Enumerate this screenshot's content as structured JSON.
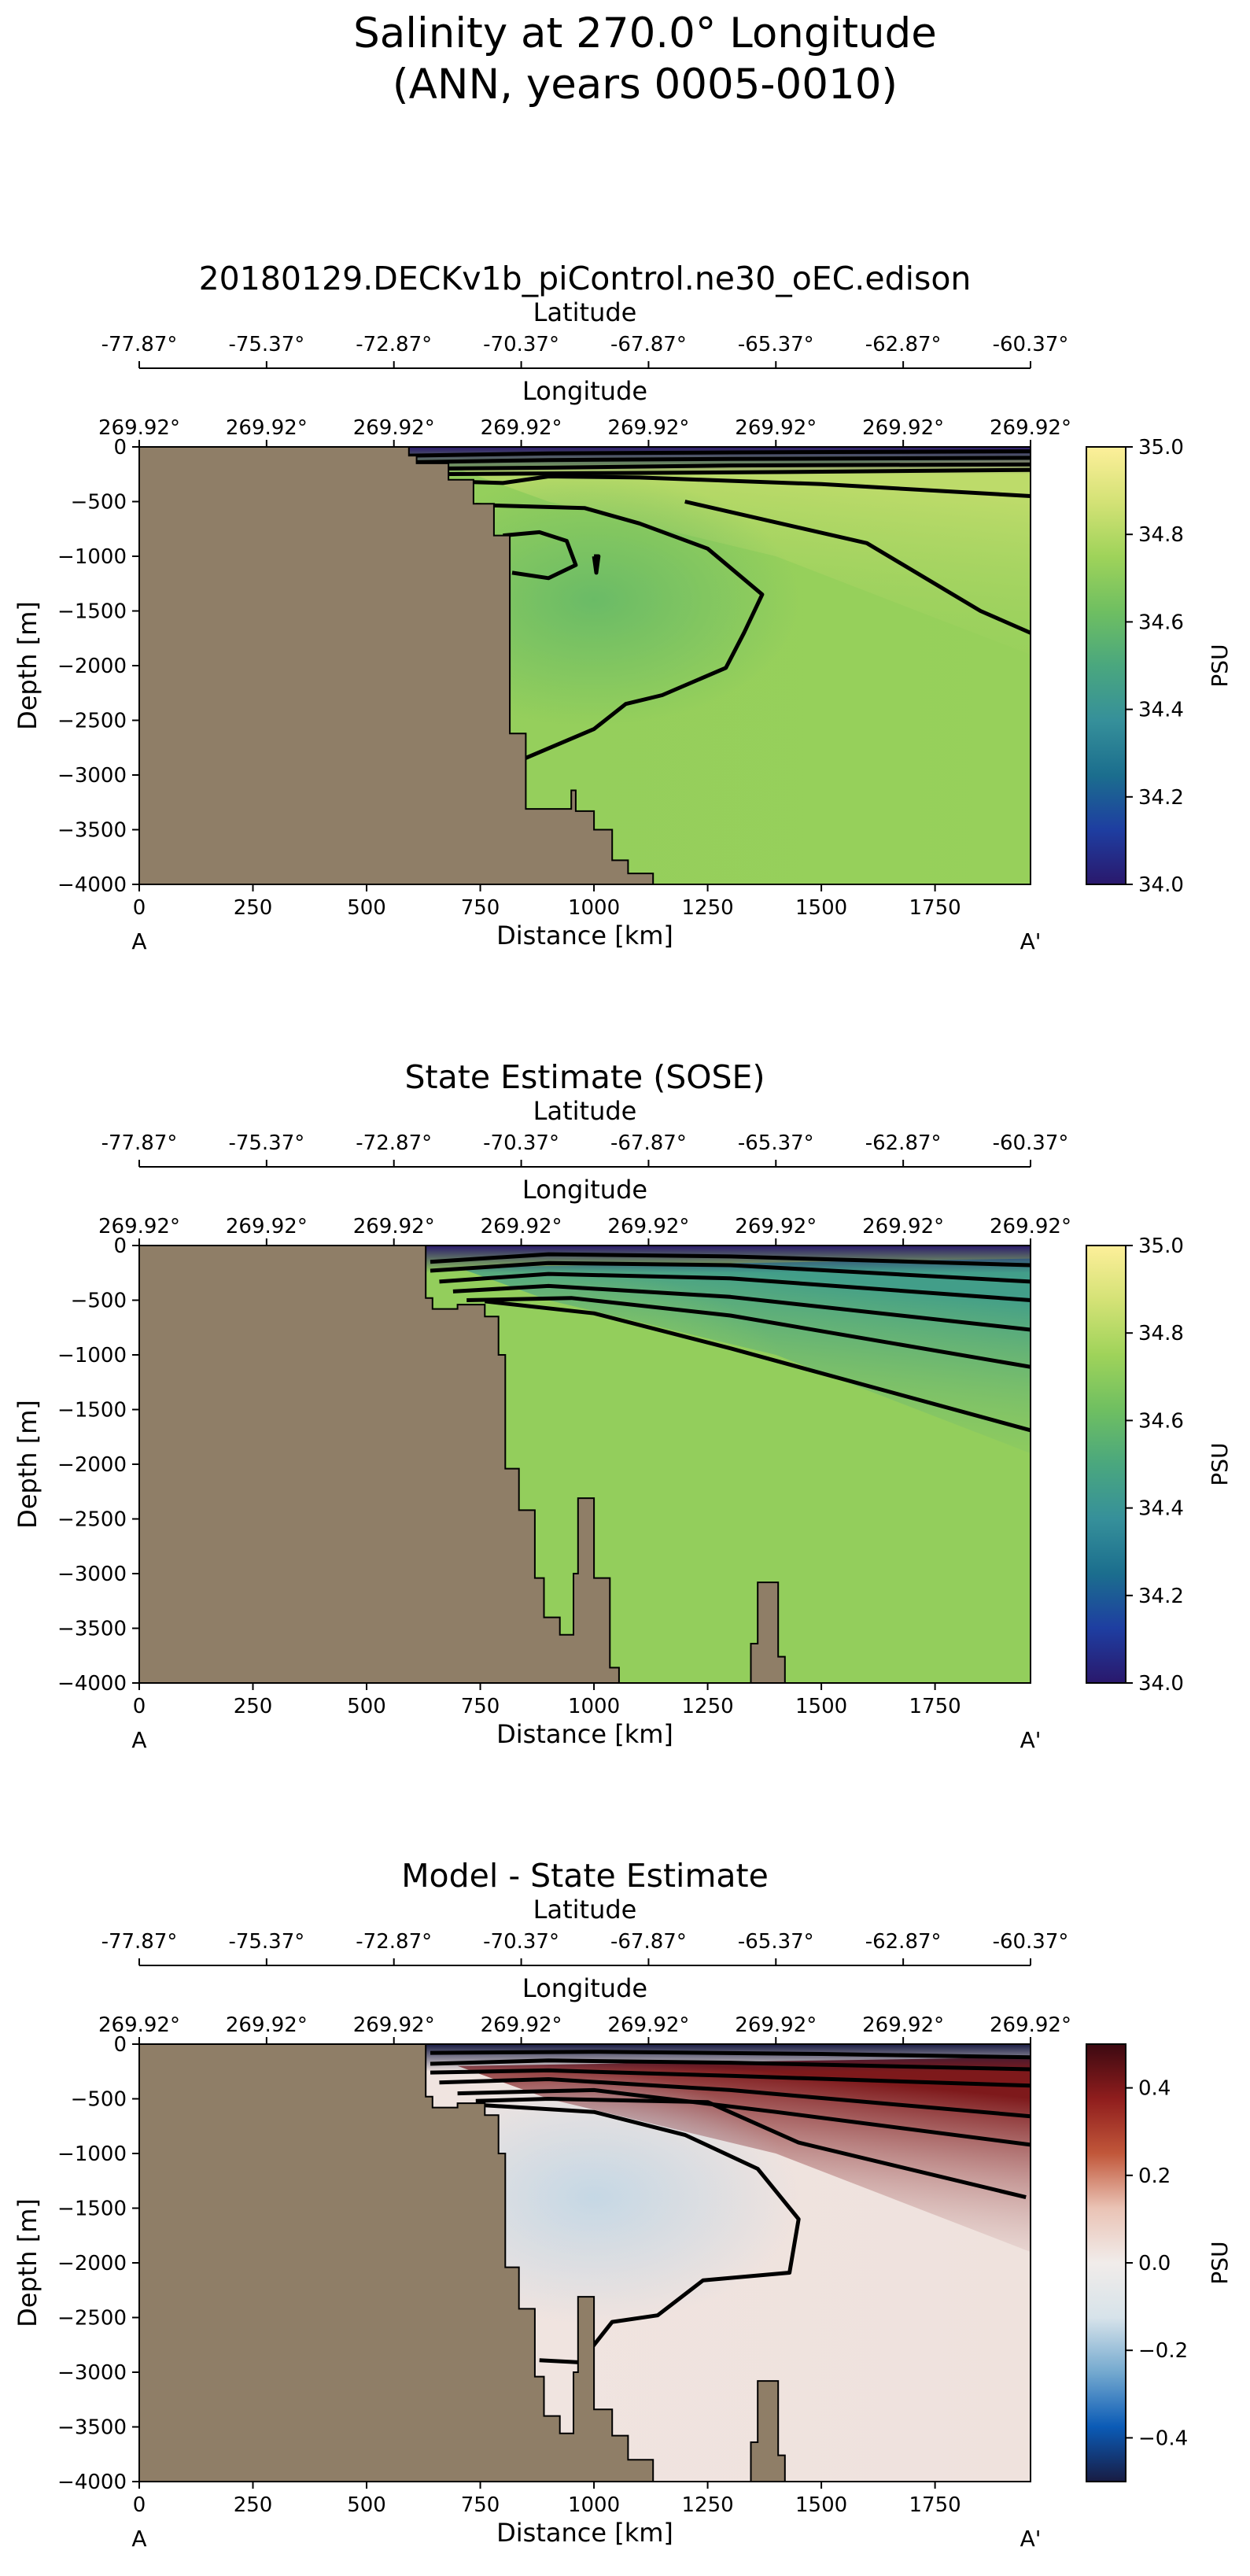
{
  "figure": {
    "title_line1": "Salinity at 270.0° Longitude",
    "title_line2": "(ANN, years 0005-0010)"
  },
  "colors": {
    "land": "#8f7e67",
    "contour": "#000000",
    "haline": [
      "#2a186c",
      "#1e3ea1",
      "#1b6e8e",
      "#36909a",
      "#4aa77e",
      "#6fbf61",
      "#9fd35a",
      "#d4e276",
      "#fdef9a"
    ],
    "balance": [
      "#181c43",
      "#0b5bb6",
      "#74a9cf",
      "#d7e3ea",
      "#f1ecea",
      "#eac3b5",
      "#c1573a",
      "#8f1d1d",
      "#3c0911"
    ]
  },
  "chart_data": [
    {
      "type": "heatmap",
      "panel_title": "20180129.DECKv1b_piControl.ne30_oEC.edison",
      "xlabel": "Distance [km]",
      "ylabel": "Depth [m]",
      "xlim": [
        0,
        1960
      ],
      "ylim": [
        -4000,
        0
      ],
      "x_ticks": [
        0,
        250,
        500,
        750,
        1000,
        1250,
        1500,
        1750
      ],
      "y_ticks": [
        0,
        -500,
        -1000,
        -1500,
        -2000,
        -2500,
        -3000,
        -3500,
        -4000
      ],
      "latitude_label": "Latitude",
      "latitude_ticks": [
        "-77.87°",
        "-75.37°",
        "-72.87°",
        "-70.37°",
        "-67.87°",
        "-65.37°",
        "-62.87°",
        "-60.37°"
      ],
      "longitude_label": "Longitude",
      "longitude_ticks": [
        "269.92°",
        "269.92°",
        "269.92°",
        "269.92°",
        "269.92°",
        "269.92°",
        "269.92°",
        "269.92°"
      ],
      "start_label": "A",
      "end_label": "A'",
      "colorbar": {
        "cmap": "haline",
        "label": "PSU",
        "min": 34.0,
        "max": 35.0,
        "ticks": [
          34.0,
          34.2,
          34.4,
          34.6,
          34.8,
          35.0
        ],
        "tick_labels": [
          "34.0",
          "34.2",
          "34.4",
          "34.6",
          "34.8",
          "35.0"
        ]
      },
      "field_values": {
        "background": 34.72,
        "deep_right": 34.73,
        "core_min": 34.6,
        "upper_right": 34.82,
        "surface": 34.0
      },
      "land_profile": [
        [
          0,
          0
        ],
        [
          593,
          0
        ],
        [
          593,
          -80
        ],
        [
          610,
          -80
        ],
        [
          610,
          -150
        ],
        [
          680,
          -150
        ],
        [
          680,
          -300
        ],
        [
          735,
          -300
        ],
        [
          735,
          -520
        ],
        [
          780,
          -520
        ],
        [
          780,
          -810
        ],
        [
          815,
          -810
        ],
        [
          815,
          -2620
        ],
        [
          850,
          -2620
        ],
        [
          850,
          -3310
        ],
        [
          950,
          -3310
        ],
        [
          950,
          -3140
        ],
        [
          960,
          -3140
        ],
        [
          960,
          -3330
        ],
        [
          1000,
          -3330
        ],
        [
          1000,
          -3500
        ],
        [
          1040,
          -3500
        ],
        [
          1040,
          -3780
        ],
        [
          1075,
          -3780
        ],
        [
          1075,
          -3900
        ],
        [
          1130,
          -3900
        ],
        [
          1130,
          -4000
        ],
        [
          0,
          -4000
        ]
      ],
      "contours": [
        [
          [
            593,
            -80
          ],
          [
            900,
            -60
          ],
          [
            1300,
            -50
          ],
          [
            1960,
            -40
          ]
        ],
        [
          [
            593,
            -140
          ],
          [
            900,
            -120
          ],
          [
            1300,
            -110
          ],
          [
            1960,
            -100
          ]
        ],
        [
          [
            600,
            -200
          ],
          [
            900,
            -190
          ],
          [
            1300,
            -170
          ],
          [
            1960,
            -160
          ]
        ],
        [
          [
            620,
            -250
          ],
          [
            1000,
            -240
          ],
          [
            1400,
            -230
          ],
          [
            1960,
            -210
          ]
        ],
        [
          [
            640,
            -310
          ],
          [
            800,
            -330
          ],
          [
            900,
            -270
          ],
          [
            1100,
            -280
          ],
          [
            1500,
            -340
          ],
          [
            1960,
            -450
          ]
        ],
        [
          [
            740,
            -530
          ],
          [
            980,
            -560
          ],
          [
            1100,
            -700
          ],
          [
            1250,
            -930
          ],
          [
            1370,
            -1350
          ],
          [
            1330,
            -1700
          ],
          [
            1290,
            -2020
          ],
          [
            1150,
            -2270
          ],
          [
            1070,
            -2350
          ],
          [
            1000,
            -2580
          ],
          [
            830,
            -2880
          ],
          [
            815,
            -2880
          ]
        ],
        [
          [
            1000,
            -1000
          ],
          [
            1005,
            -1150
          ],
          [
            1010,
            -1000
          ],
          [
            1000,
            -1000
          ]
        ],
        [
          [
            800,
            -810
          ],
          [
            880,
            -780
          ],
          [
            940,
            -860
          ],
          [
            960,
            -1080
          ],
          [
            900,
            -1200
          ],
          [
            820,
            -1150
          ]
        ],
        [
          [
            1200,
            -500
          ],
          [
            1600,
            -880
          ],
          [
            1850,
            -1500
          ],
          [
            1960,
            -1700
          ]
        ]
      ]
    },
    {
      "type": "heatmap",
      "panel_title": "State Estimate (SOSE)",
      "xlabel": "Distance [km]",
      "ylabel": "Depth [m]",
      "xlim": [
        0,
        1960
      ],
      "ylim": [
        -4000,
        0
      ],
      "x_ticks": [
        0,
        250,
        500,
        750,
        1000,
        1250,
        1500,
        1750
      ],
      "y_ticks": [
        0,
        -500,
        -1000,
        -1500,
        -2000,
        -2500,
        -3000,
        -3500,
        -4000
      ],
      "latitude_label": "Latitude",
      "latitude_ticks": [
        "-77.87°",
        "-75.37°",
        "-72.87°",
        "-70.37°",
        "-67.87°",
        "-65.37°",
        "-62.87°",
        "-60.37°"
      ],
      "longitude_label": "Longitude",
      "longitude_ticks": [
        "269.92°",
        "269.92°",
        "269.92°",
        "269.92°",
        "269.92°",
        "269.92°",
        "269.92°",
        "269.92°"
      ],
      "start_label": "A",
      "end_label": "A'",
      "colorbar": {
        "cmap": "haline",
        "label": "PSU",
        "min": 34.0,
        "max": 35.0,
        "ticks": [
          34.0,
          34.2,
          34.4,
          34.6,
          34.8,
          35.0
        ],
        "tick_labels": [
          "34.0",
          "34.2",
          "34.4",
          "34.6",
          "34.8",
          "35.0"
        ]
      },
      "field_values": {
        "background": 34.72,
        "deep_right": 34.72,
        "core_min": 34.72,
        "upper_right": 34.45,
        "surface": 34.0
      },
      "land_profile": [
        [
          0,
          0
        ],
        [
          630,
          0
        ],
        [
          630,
          -480
        ],
        [
          645,
          -480
        ],
        [
          645,
          -580
        ],
        [
          700,
          -580
        ],
        [
          700,
          -540
        ],
        [
          760,
          -540
        ],
        [
          760,
          -650
        ],
        [
          790,
          -650
        ],
        [
          790,
          -1000
        ],
        [
          805,
          -1000
        ],
        [
          805,
          -2040
        ],
        [
          835,
          -2040
        ],
        [
          835,
          -2420
        ],
        [
          870,
          -2420
        ],
        [
          870,
          -3040
        ],
        [
          890,
          -3040
        ],
        [
          890,
          -3400
        ],
        [
          925,
          -3400
        ],
        [
          925,
          -3560
        ],
        [
          955,
          -3560
        ],
        [
          955,
          -3000
        ],
        [
          965,
          -3000
        ],
        [
          965,
          -2310
        ],
        [
          1000,
          -2310
        ],
        [
          1000,
          -3040
        ],
        [
          1035,
          -3040
        ],
        [
          1035,
          -3860
        ],
        [
          1055,
          -3860
        ],
        [
          1055,
          -4000
        ],
        [
          0,
          -4000
        ]
      ],
      "sea_mount": [
        [
          1345,
          -4000
        ],
        [
          1345,
          -3640
        ],
        [
          1360,
          -3640
        ],
        [
          1360,
          -3080
        ],
        [
          1405,
          -3080
        ],
        [
          1405,
          -3760
        ],
        [
          1420,
          -3760
        ],
        [
          1420,
          -4000
        ]
      ],
      "contours": [
        [
          [
            640,
            -150
          ],
          [
            900,
            -80
          ],
          [
            1300,
            -100
          ],
          [
            1960,
            -180
          ]
        ],
        [
          [
            640,
            -230
          ],
          [
            900,
            -160
          ],
          [
            1300,
            -180
          ],
          [
            1960,
            -330
          ]
        ],
        [
          [
            660,
            -330
          ],
          [
            900,
            -260
          ],
          [
            1300,
            -300
          ],
          [
            1960,
            -500
          ]
        ],
        [
          [
            690,
            -420
          ],
          [
            900,
            -370
          ],
          [
            1300,
            -470
          ],
          [
            1960,
            -770
          ]
        ],
        [
          [
            720,
            -500
          ],
          [
            950,
            -480
          ],
          [
            1300,
            -640
          ],
          [
            1960,
            -1110
          ]
        ],
        [
          [
            760,
            -510
          ],
          [
            1000,
            -620
          ],
          [
            1300,
            -940
          ],
          [
            1960,
            -1690
          ]
        ]
      ]
    },
    {
      "type": "heatmap",
      "panel_title": "Model - State Estimate",
      "xlabel": "Distance [km]",
      "ylabel": "Depth [m]",
      "xlim": [
        0,
        1960
      ],
      "ylim": [
        -4000,
        0
      ],
      "x_ticks": [
        0,
        250,
        500,
        750,
        1000,
        1250,
        1500,
        1750
      ],
      "y_ticks": [
        0,
        -500,
        -1000,
        -1500,
        -2000,
        -2500,
        -3000,
        -3500,
        -4000
      ],
      "latitude_label": "Latitude",
      "latitude_ticks": [
        "-77.87°",
        "-75.37°",
        "-72.87°",
        "-70.37°",
        "-67.87°",
        "-65.37°",
        "-62.87°",
        "-60.37°"
      ],
      "longitude_label": "Longitude",
      "longitude_ticks": [
        "269.92°",
        "269.92°",
        "269.92°",
        "269.92°",
        "269.92°",
        "269.92°",
        "269.92°",
        "269.92°"
      ],
      "start_label": "A",
      "end_label": "A'",
      "colorbar": {
        "cmap": "balance",
        "label": "PSU",
        "min": -0.5,
        "max": 0.5,
        "ticks": [
          -0.4,
          -0.2,
          0.0,
          0.2,
          0.4
        ],
        "tick_labels": [
          "−0.4",
          "−0.2",
          "0.0",
          "0.2",
          "0.4"
        ]
      },
      "field_values": {
        "background": 0.02,
        "deep_right": 0.03,
        "core_min": -0.15,
        "upper_right": 0.4,
        "surface": -0.5
      },
      "land_profile": [
        [
          0,
          0
        ],
        [
          630,
          0
        ],
        [
          630,
          -480
        ],
        [
          645,
          -480
        ],
        [
          645,
          -580
        ],
        [
          700,
          -580
        ],
        [
          700,
          -540
        ],
        [
          760,
          -540
        ],
        [
          760,
          -650
        ],
        [
          790,
          -650
        ],
        [
          790,
          -1000
        ],
        [
          805,
          -1000
        ],
        [
          805,
          -2040
        ],
        [
          835,
          -2040
        ],
        [
          835,
          -2420
        ],
        [
          870,
          -2420
        ],
        [
          870,
          -3040
        ],
        [
          890,
          -3040
        ],
        [
          890,
          -3400
        ],
        [
          925,
          -3400
        ],
        [
          925,
          -3560
        ],
        [
          955,
          -3560
        ],
        [
          955,
          -3000
        ],
        [
          965,
          -3000
        ],
        [
          965,
          -2310
        ],
        [
          1000,
          -2310
        ],
        [
          1000,
          -3340
        ],
        [
          1040,
          -3340
        ],
        [
          1040,
          -3580
        ],
        [
          1075,
          -3580
        ],
        [
          1075,
          -3800
        ],
        [
          1130,
          -3800
        ],
        [
          1130,
          -4000
        ],
        [
          0,
          -4000
        ]
      ],
      "sea_mount": [
        [
          1345,
          -4000
        ],
        [
          1345,
          -3640
        ],
        [
          1360,
          -3640
        ],
        [
          1360,
          -3080
        ],
        [
          1405,
          -3080
        ],
        [
          1405,
          -3760
        ],
        [
          1420,
          -3760
        ],
        [
          1420,
          -4000
        ]
      ],
      "contours": [
        [
          [
            640,
            -80
          ],
          [
            1000,
            -70
          ],
          [
            1500,
            -90
          ],
          [
            1960,
            -120
          ]
        ],
        [
          [
            640,
            -180
          ],
          [
            900,
            -150
          ],
          [
            1300,
            -170
          ],
          [
            1960,
            -230
          ]
        ],
        [
          [
            640,
            -260
          ],
          [
            900,
            -240
          ],
          [
            1300,
            -290
          ],
          [
            1960,
            -380
          ]
        ],
        [
          [
            660,
            -350
          ],
          [
            900,
            -320
          ],
          [
            1300,
            -420
          ],
          [
            1960,
            -660
          ]
        ],
        [
          [
            700,
            -450
          ],
          [
            1000,
            -420
          ],
          [
            1400,
            -620
          ],
          [
            1960,
            -920
          ]
        ],
        [
          [
            740,
            -520
          ],
          [
            900,
            -500
          ],
          [
            1250,
            -530
          ],
          [
            1450,
            -900
          ],
          [
            1950,
            -1400
          ]
        ],
        [
          [
            760,
            -560
          ],
          [
            1000,
            -620
          ],
          [
            1200,
            -830
          ],
          [
            1360,
            -1140
          ],
          [
            1450,
            -1600
          ],
          [
            1430,
            -2090
          ],
          [
            1240,
            -2160
          ],
          [
            1140,
            -2480
          ],
          [
            1040,
            -2540
          ],
          [
            1000,
            -2750
          ],
          [
            970,
            -2910
          ],
          [
            880,
            -2890
          ]
        ]
      ]
    }
  ]
}
